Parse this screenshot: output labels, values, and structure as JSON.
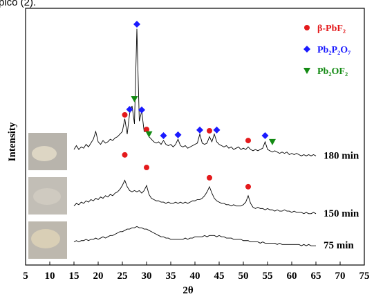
{
  "caption_fragment": "pico (2).",
  "chart_data": {
    "type": "line",
    "xlabel": "2θ",
    "ylabel": "Intensity",
    "xlim": [
      5,
      75
    ],
    "ylim": [
      0,
      100
    ],
    "xticks": [
      5,
      10,
      15,
      20,
      25,
      30,
      35,
      40,
      45,
      50,
      55,
      60,
      65,
      70,
      75
    ],
    "legend": "top-right",
    "x": [
      15,
      15.5,
      16,
      16.5,
      17,
      17.5,
      18,
      18.5,
      19,
      19.5,
      20,
      20.5,
      21,
      21.5,
      22,
      22.5,
      23,
      23.5,
      24,
      24.5,
      25,
      25.5,
      26,
      26.5,
      27,
      27.5,
      28,
      28.5,
      29,
      29.5,
      30,
      30.5,
      31,
      31.5,
      32,
      32.5,
      33,
      33.5,
      34,
      34.5,
      35,
      35.5,
      36,
      36.5,
      37,
      37.5,
      38,
      38.5,
      39,
      39.5,
      40,
      40.5,
      41,
      41.5,
      42,
      42.5,
      43,
      43.5,
      44,
      44.5,
      45,
      45.5,
      46,
      46.5,
      47,
      47.5,
      48,
      48.5,
      49,
      49.5,
      50,
      50.5,
      51,
      51.5,
      52,
      52.5,
      53,
      53.5,
      54,
      54.5,
      55,
      55.5,
      56,
      56.5,
      57,
      57.5,
      58,
      58.5,
      59,
      59.5,
      60,
      60.5,
      61,
      61.5,
      62,
      62.5,
      63,
      63.5,
      64,
      64.5,
      65
    ],
    "series": [
      {
        "name": "180 min",
        "color": "#000000",
        "values": [
          45,
          46.5,
          45,
          46,
          45.5,
          47,
          46,
          47.5,
          49,
          52,
          48,
          47,
          48.5,
          47.5,
          48,
          49,
          48.5,
          49.5,
          50,
          51,
          52,
          57,
          51,
          59,
          62,
          55,
          92,
          56,
          60,
          52,
          53,
          50,
          49,
          48,
          47.5,
          48,
          47,
          48.5,
          47,
          46.5,
          47,
          46,
          47,
          49,
          46.5,
          46,
          46.5,
          45.5,
          46,
          46.5,
          47,
          47.5,
          51,
          47.5,
          47,
          47.5,
          50,
          48,
          51,
          48,
          47,
          46.5,
          46,
          46.5,
          45.5,
          46,
          45,
          45.5,
          46,
          45,
          45.5,
          45,
          46,
          45,
          44.5,
          45,
          44.5,
          45,
          45.5,
          48,
          45,
          44.5,
          44,
          44.5,
          44,
          43.5,
          44,
          43.5,
          44,
          43,
          43.5,
          43,
          43.5,
          43,
          42.5,
          43,
          42.5,
          43,
          42.5,
          43,
          42.5
        ]
      },
      {
        "name": "150 min",
        "color": "#000000",
        "values": [
          23,
          24,
          23.5,
          24.5,
          24,
          25,
          24.5,
          25.5,
          25,
          26,
          25.5,
          26.5,
          26,
          27,
          26.5,
          27.5,
          27,
          28,
          28.5,
          29.5,
          31,
          33,
          30.5,
          29,
          28.5,
          29,
          28.5,
          29,
          28,
          29,
          31,
          27.5,
          26,
          25.5,
          25,
          25,
          24.5,
          24.5,
          24,
          24.5,
          24,
          24,
          24.5,
          24,
          24.5,
          24,
          24.5,
          24,
          24.5,
          25,
          25,
          25.5,
          25.5,
          26,
          27,
          28.5,
          30.5,
          28,
          26,
          25,
          24.5,
          24,
          24,
          23.5,
          23.5,
          23,
          23.5,
          23,
          23,
          23,
          23.5,
          24.5,
          27,
          24,
          22.5,
          22,
          22.5,
          22,
          22,
          21.5,
          22,
          21.5,
          21.5,
          21,
          21.5,
          21,
          21,
          21.5,
          21,
          21,
          20.5,
          21,
          20.5,
          20.5,
          20.5,
          20,
          20.5,
          20,
          20,
          20.5,
          20
        ]
      },
      {
        "name": "75 min",
        "color": "#000000",
        "values": [
          9,
          9.5,
          9,
          9.5,
          9.5,
          10,
          9.5,
          10,
          10,
          10.5,
          10,
          10.5,
          11,
          10.5,
          11,
          11.5,
          11.5,
          12,
          12.5,
          13,
          13,
          13.5,
          14,
          14,
          14.5,
          14.5,
          15,
          14.5,
          14.5,
          14,
          14,
          13.5,
          13,
          12.5,
          12,
          11.5,
          11,
          11,
          10.5,
          10.5,
          10,
          10,
          10,
          10,
          10,
          10,
          10.5,
          10,
          10.5,
          10.5,
          11,
          11,
          11,
          11,
          11.5,
          11,
          11.5,
          11.5,
          11.5,
          11,
          11.5,
          11,
          11,
          10.5,
          10.5,
          10.5,
          10,
          10,
          10,
          10,
          9.5,
          9.5,
          9.5,
          9,
          9,
          9,
          9,
          8.5,
          9,
          8.5,
          8.5,
          8.5,
          8.5,
          8.5,
          8,
          8.5,
          8,
          8,
          8,
          8,
          8,
          8,
          8,
          8,
          7.5,
          8,
          7.5,
          8,
          7.5,
          7.5,
          7.5
        ]
      }
    ],
    "markers": [
      {
        "name": "β-PbF₂",
        "color": "#e41a1c",
        "symbol": "circle",
        "x": [
          25.5,
          30,
          43,
          51,
          25.5,
          30,
          43,
          51
        ],
        "values": [
          58.5,
          52.8,
          52.3,
          48.5,
          42.9,
          38,
          34,
          30.5
        ]
      },
      {
        "name": "Pb₂P₂O₇",
        "color": "#1a1aff",
        "symbol": "diamond",
        "x": [
          28,
          26.5,
          29,
          33.5,
          36.5,
          41,
          44.5,
          54.5
        ],
        "values": [
          93.8,
          60.6,
          60.4,
          50.4,
          50.7,
          52.6,
          52.6,
          50.4
        ]
      },
      {
        "name": "Pb₂OF₂",
        "color": "#138a13",
        "symbol": "triangle",
        "x": [
          27.5,
          30.5,
          56
        ],
        "values": [
          64.7,
          51,
          48
        ]
      }
    ]
  }
}
